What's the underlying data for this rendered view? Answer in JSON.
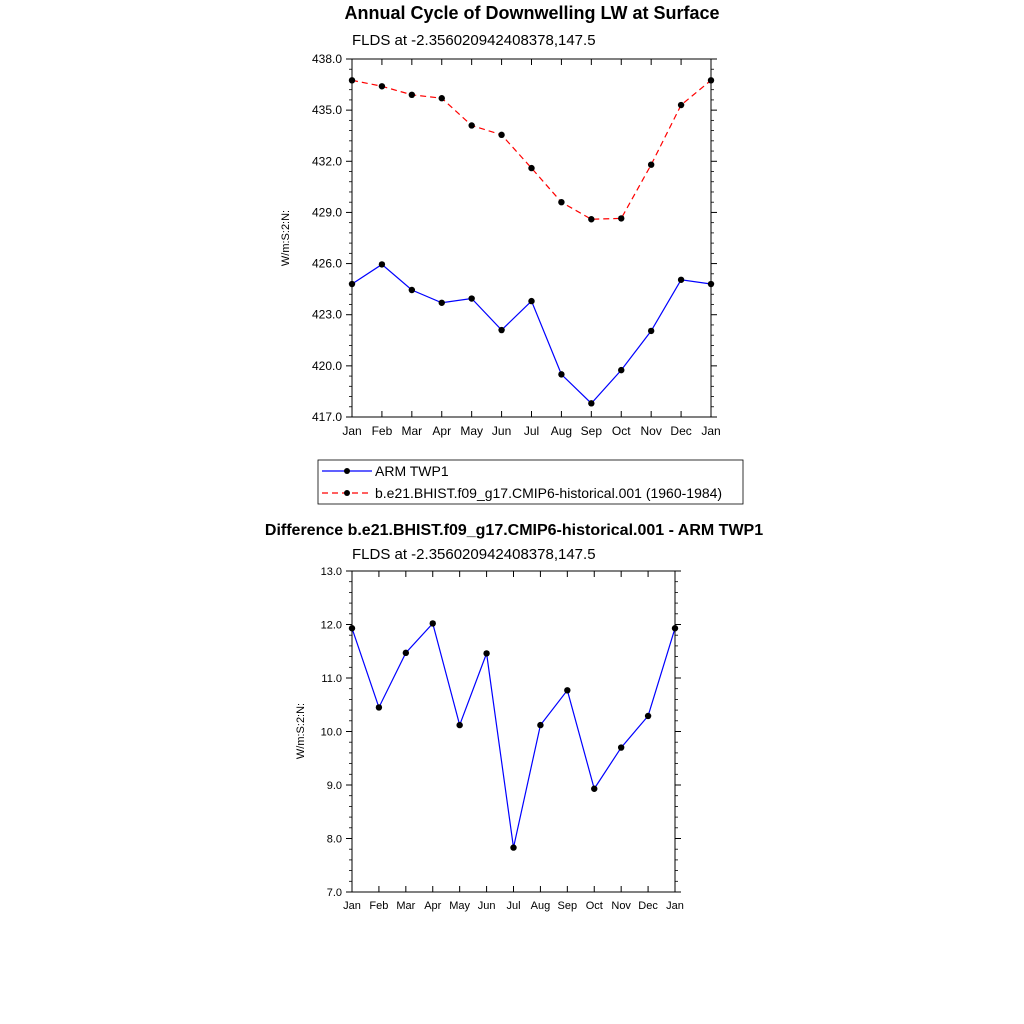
{
  "chart_data": [
    {
      "type": "line",
      "title": "Annual Cycle of Downwelling LW at Surface",
      "subtitle": "FLDS at -2.356020942408378,147.5",
      "ylabel": "W/m:S:2:N:",
      "xlabel": "",
      "categories": [
        "Jan",
        "Feb",
        "Mar",
        "Apr",
        "May",
        "Jun",
        "Jul",
        "Aug",
        "Sep",
        "Oct",
        "Nov",
        "Dec",
        "Jan"
      ],
      "ylim": [
        417.0,
        438.0
      ],
      "yticks": [
        "417.0",
        "420.0",
        "423.0",
        "426.0",
        "429.0",
        "432.0",
        "435.0",
        "438.0"
      ],
      "series": [
        {
          "name": "ARM TWP1",
          "color": "#0000ff",
          "dash": "solid",
          "values": [
            424.8,
            425.95,
            424.45,
            423.7,
            423.95,
            422.1,
            423.8,
            419.5,
            417.8,
            419.75,
            422.05,
            425.05,
            424.8
          ]
        },
        {
          "name": "b.e21.BHIST.f09_g17.CMIP6-historical.001 (1960-1984)",
          "color": "#ff0000",
          "dash": "dashed",
          "values": [
            436.75,
            436.4,
            435.9,
            435.7,
            434.1,
            433.55,
            431.6,
            429.6,
            428.6,
            428.65,
            431.8,
            435.3,
            436.75
          ]
        }
      ],
      "legend": "bottom"
    },
    {
      "type": "line",
      "title": "Difference b.e21.BHIST.f09_g17.CMIP6-historical.001 - ARM TWP1",
      "subtitle": "FLDS at -2.356020942408378,147.5",
      "ylabel": "W/m:S:2:N:",
      "xlabel": "",
      "categories": [
        "Jan",
        "Feb",
        "Mar",
        "Apr",
        "May",
        "Jun",
        "Jul",
        "Aug",
        "Sep",
        "Oct",
        "Nov",
        "Dec",
        "Jan"
      ],
      "ylim": [
        7.0,
        13.0
      ],
      "yticks": [
        "7.0",
        "8.0",
        "9.0",
        "10.0",
        "11.0",
        "12.0",
        "13.0"
      ],
      "series": [
        {
          "name": "Difference",
          "color": "#0000ff",
          "dash": "solid",
          "values": [
            11.93,
            10.45,
            11.47,
            12.02,
            10.12,
            11.46,
            7.83,
            10.12,
            10.77,
            8.93,
            9.7,
            10.29,
            11.93
          ]
        }
      ]
    }
  ]
}
